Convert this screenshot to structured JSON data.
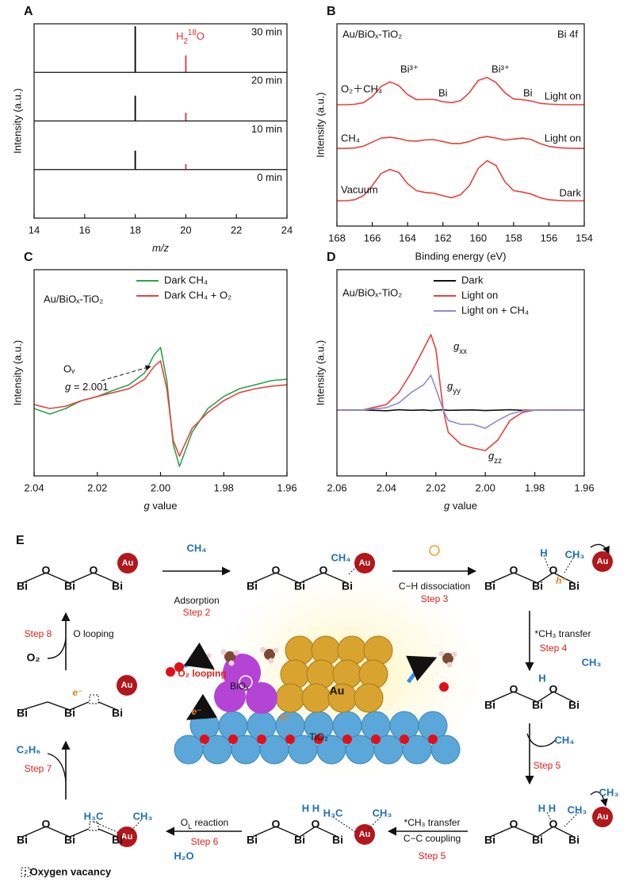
{
  "chart_data": [
    {
      "type": "stem",
      "label": "A",
      "xlabel": [
        {
          "text": "m/z",
          "style": "italic"
        }
      ],
      "ylabel": "Intensity (a.u.)",
      "xlim": [
        14,
        24
      ],
      "xticks": [
        14,
        16,
        18,
        20,
        22,
        24
      ],
      "ylim": [
        0,
        1
      ],
      "annotation": [
        {
          "text": "H"
        },
        {
          "text": "2",
          "style": "sub"
        },
        {
          "text": "18",
          "style": "sup"
        },
        {
          "text": "O"
        }
      ],
      "annotation_color": "#e8312f",
      "panels": [
        {
          "title": "30 min",
          "series": [
            {
              "color": "#000000",
              "x": [
                18
              ],
              "values": [
                0.95
              ]
            },
            {
              "color": "#e8312f",
              "x": [
                20
              ],
              "values": [
                0.35
              ]
            }
          ]
        },
        {
          "title": "20 min",
          "series": [
            {
              "color": "#000000",
              "x": [
                18
              ],
              "values": [
                0.52
              ]
            },
            {
              "color": "#e8312f",
              "x": [
                20
              ],
              "values": [
                0.17
              ]
            }
          ]
        },
        {
          "title": "10 min",
          "series": [
            {
              "color": "#000000",
              "x": [
                18
              ],
              "values": [
                0.39
              ]
            },
            {
              "color": "#e8312f",
              "x": [
                20
              ],
              "values": [
                0.11
              ]
            }
          ]
        },
        {
          "title": "0 min",
          "series": []
        }
      ]
    },
    {
      "type": "line",
      "label": "B",
      "title": "Au/BiOₓ-TiO₂",
      "subtitle": "Bi 4f",
      "xlabel": "Binding energy (eV)",
      "ylabel": "Intensity (a.u.)",
      "xlim": [
        168,
        154
      ],
      "xticks": [
        168,
        166,
        164,
        162,
        160,
        158,
        156,
        154
      ],
      "ylim": [
        0,
        100
      ],
      "legend": "inline",
      "x": [
        168,
        167.5,
        167,
        166.5,
        166,
        165.5,
        165,
        164.5,
        164,
        163.5,
        163,
        162.5,
        162,
        161.5,
        161,
        160.5,
        160,
        159.5,
        159,
        158.5,
        158,
        157.5,
        157,
        156.5,
        156,
        155.5,
        155,
        154.5,
        154
      ],
      "series": [
        {
          "name": "O₂＋CH₄",
          "condition": "Light on",
          "color": "#e8413c",
          "values": [
            60,
            60,
            60.2,
            61,
            64,
            69,
            71.3,
            69.5,
            65,
            62.5,
            62.6,
            62.6,
            61.5,
            61,
            62,
            66,
            72,
            73.5,
            71,
            66,
            62.8,
            62.5,
            61.8,
            60.7,
            60.3,
            60.1,
            60,
            60,
            60
          ]
        },
        {
          "name": "CH₄",
          "condition": "Light on",
          "color": "#e8413c",
          "values": [
            38.4,
            38.4,
            38.6,
            39.5,
            41.5,
            43.5,
            43.9,
            43.3,
            42.2,
            42,
            42.6,
            42.7,
            41.8,
            40.8,
            40.8,
            41.8,
            43.5,
            44.3,
            43.5,
            42.5,
            43,
            43.5,
            42.8,
            40.8,
            39.4,
            38.8,
            38.5,
            38.4,
            38.4
          ]
        },
        {
          "name": "Vacuum",
          "condition": "Dark",
          "color": "#e8413c",
          "values": [
            12.5,
            12.5,
            13,
            15,
            20,
            26,
            28,
            26.5,
            21,
            17.5,
            16.6,
            16.2,
            15,
            14,
            15.5,
            20,
            28.5,
            32.3,
            30,
            22,
            17.5,
            16.8,
            15.8,
            14,
            13,
            12.7,
            12.5,
            12.5,
            12.5
          ]
        }
      ],
      "annotations": [
        "Bi³⁺",
        "Bi",
        "Bi³⁺",
        "Bi"
      ]
    },
    {
      "type": "line",
      "label": "C",
      "title": "Au/BiOₓ-TiO₂",
      "xlabel": [
        {
          "text": "g",
          "style": "italic"
        },
        {
          "text": " value"
        }
      ],
      "ylabel": "Intensity (a.u.)",
      "xlim": [
        2.04,
        1.96
      ],
      "xticks": [
        2.04,
        2.02,
        {
          "value": 2,
          "label": "2.00"
        },
        1.98,
        1.96
      ],
      "ylim": [
        0,
        100
      ],
      "legend": "upper right",
      "x": [
        2.04,
        2.035,
        2.03,
        2.025,
        2.02,
        2.015,
        2.01,
        2.005,
        2.002,
        2.0,
        1.998,
        1.996,
        1.994,
        1.99,
        1.985,
        1.98,
        1.975,
        1.97,
        1.965,
        1.96
      ],
      "series": [
        {
          "name": "Dark CH₄",
          "color": "#2aa64a",
          "values": [
            32.7,
            30,
            32.7,
            36.5,
            38.5,
            41.5,
            44.2,
            50,
            58.8,
            62.3,
            46.2,
            15.4,
            4.6,
            21.2,
            32.7,
            38.5,
            42.3,
            44.2,
            46.2,
            46.9
          ]
        },
        {
          "name": "Dark CH₄ + O₂",
          "color": "#e8413c",
          "values": [
            34.6,
            32.7,
            33.8,
            36.5,
            38.5,
            40.4,
            42.3,
            46.9,
            53.1,
            55.8,
            42.3,
            17.3,
            9.6,
            23.1,
            30.8,
            36.5,
            40.4,
            42.3,
            43.5,
            44.2
          ]
        }
      ],
      "annotations": [
        "Oᵥ",
        [
          {
            "text": "g",
            "style": "italic"
          },
          {
            "text": " = 2.001"
          }
        ]
      ]
    },
    {
      "type": "line",
      "label": "D",
      "title": "Au/BiOₓ-TiO₂",
      "xlabel": [
        {
          "text": "g",
          "style": "italic"
        },
        {
          "text": " value"
        }
      ],
      "ylabel": "Intensity (a.u.)",
      "xlim": [
        2.06,
        1.96
      ],
      "xticks": [
        2.06,
        2.04,
        2.02,
        {
          "value": 2,
          "label": "2.00"
        },
        1.98,
        1.96
      ],
      "ylim": [
        0,
        100
      ],
      "legend": "upper right",
      "x": [
        2.06,
        2.05,
        2.04,
        2.035,
        2.03,
        2.025,
        2.022,
        2.02,
        2.017,
        2.015,
        2.01,
        2.005,
        2.0,
        1.995,
        1.99,
        1.985,
        1.98,
        1.97,
        1.96
      ],
      "series": [
        {
          "name": "Dark",
          "color": "#111111",
          "values": [
            31.9,
            32,
            31.6,
            32.1,
            31.8,
            32,
            31.7,
            31.9,
            32.1,
            31.8,
            31.9,
            32,
            31.7,
            31.9,
            32.1,
            31.8,
            31.9,
            32,
            31.9
          ]
        },
        {
          "name": "Light on",
          "color": "#e8413c",
          "values": [
            31.9,
            31.9,
            34.6,
            40.4,
            50,
            61.5,
            68.5,
            61.5,
            31.9,
            21.2,
            15.4,
            13.5,
            12.3,
            17.3,
            26.9,
            30.8,
            31.9,
            31.9,
            31.9
          ]
        },
        {
          "name": "Light on + CH₄",
          "color": "#8c8cd0",
          "values": [
            31.9,
            31.9,
            33.1,
            35.4,
            40.4,
            44.2,
            48.8,
            42.3,
            31.9,
            26.9,
            25,
            25,
            23.1,
            26.9,
            30,
            31.5,
            31.9,
            31.9,
            31.9
          ]
        }
      ],
      "annotations": [
        [
          {
            "text": "g",
            "style": "italic"
          },
          {
            "text": "xx",
            "style": "sub"
          }
        ],
        [
          {
            "text": "g",
            "style": "italic"
          },
          {
            "text": "yy",
            "style": "sub"
          }
        ],
        [
          {
            "text": "g",
            "style": "italic"
          },
          {
            "text": "zz",
            "style": "sub"
          }
        ]
      ]
    }
  ],
  "scheme": {
    "texts": [
      "E",
      "Bi",
      "O",
      "Bi",
      "O",
      "Bi",
      "Au",
      "CH₄",
      "Adsorption",
      "Step 2",
      "Bi",
      "O",
      "Bi",
      "O",
      "Bi",
      "CH₄",
      "Au",
      "C−H dissociation",
      "Step 3",
      "Bi",
      "O",
      "Bi",
      "O",
      "Bi",
      "H",
      "CH₃",
      "h⁺",
      "Au",
      "*CH₃ transfer",
      "Step 4",
      "CH₃",
      "H",
      "Bi",
      "O",
      "Bi",
      "O",
      "Bi",
      "CH₄",
      "Step 5",
      "H H",
      "CH₃",
      "CH₃",
      "Au",
      "Bi",
      "O",
      "Bi",
      "O",
      "Bi",
      "*CH₃ transfer",
      "C−C coupling",
      "Step 5",
      "H H",
      "H₃C",
      "CH₃",
      "Au",
      "Bi",
      "O",
      "Bi",
      "O",
      "Bi",
      [
        {
          "text": "O"
        },
        {
          "text": "L",
          "style": "sub"
        },
        {
          "text": " reaction"
        }
      ],
      "Step 6",
      "H₂O",
      "H₃C",
      "CH₃",
      "Au",
      "Bi",
      "O",
      "Bi",
      "Bi",
      "C₂H₆",
      "Step 7",
      "Bi",
      "Bi",
      "Bi",
      "e⁻",
      "Au",
      "Step 8",
      "O looping",
      "O₂",
      "O₂ looping",
      "BiOₓ",
      "Au",
      "TiO₂",
      "e⁻",
      "h⁺",
      ": Oxygen vacancy"
    ]
  }
}
